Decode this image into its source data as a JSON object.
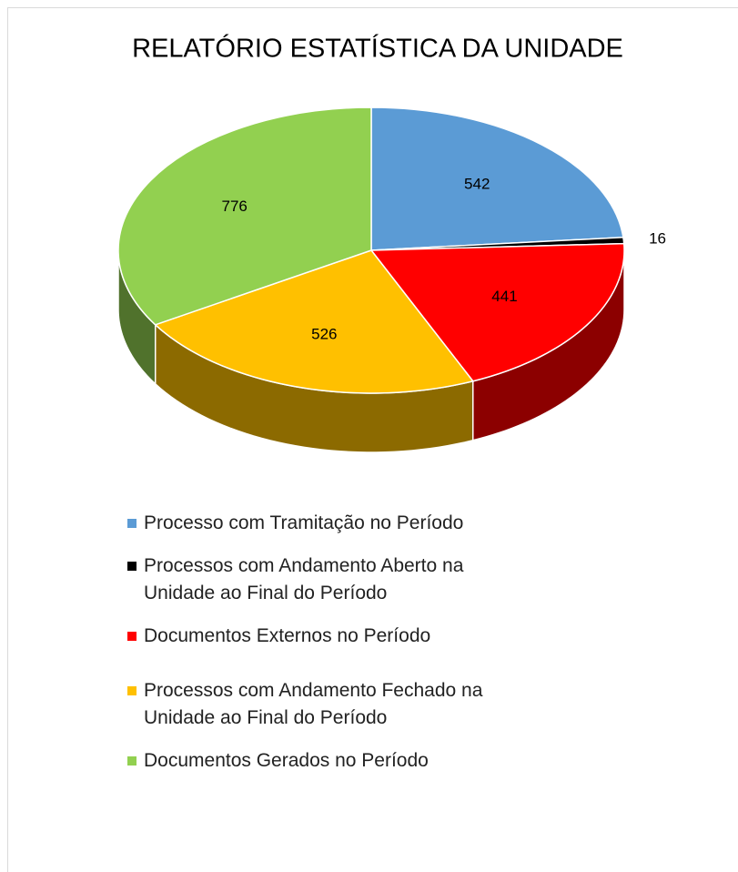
{
  "chart_data": {
    "type": "pie3d",
    "title": "RELATÓRIO ESTATÍSTICA DA UNIDADE",
    "categories": [
      "Processo com Tramitação no Período",
      "Processos com Andamento Aberto na Unidade ao Final do Período",
      "Documentos Externos no Período",
      "Processos com Andamento Fechado na Unidade ao Final do Período",
      "Documentos Gerados no Período"
    ],
    "values": [
      542,
      16,
      441,
      526,
      776
    ],
    "colors": [
      "#5b9bd5",
      "#000000",
      "#ff0000",
      "#ffc000",
      "#92d050"
    ],
    "legend": "bottom"
  }
}
